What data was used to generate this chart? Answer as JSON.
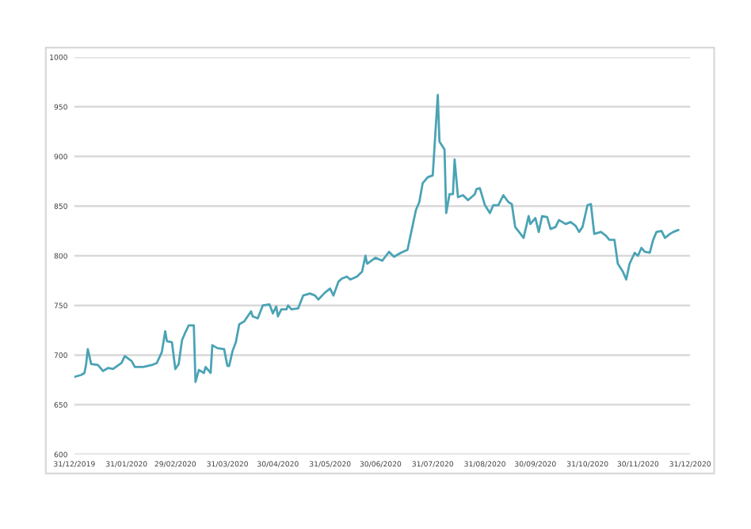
{
  "chart_data": {
    "type": "line",
    "x": [
      "2019-12-31",
      "2020-01-04",
      "2020-01-06",
      "2020-01-07",
      "2020-01-08",
      "2020-01-10",
      "2020-01-14",
      "2020-01-17",
      "2020-01-20",
      "2020-01-23",
      "2020-01-28",
      "2020-01-30",
      "2020-02-03",
      "2020-02-05",
      "2020-02-10",
      "2020-02-15",
      "2020-02-18",
      "2020-02-21",
      "2020-02-23",
      "2020-02-24",
      "2020-02-27",
      "2020-02-29",
      "2020-03-02",
      "2020-03-04",
      "2020-03-06",
      "2020-03-08",
      "2020-03-11",
      "2020-03-12",
      "2020-03-14",
      "2020-03-17",
      "2020-03-18",
      "2020-03-21",
      "2020-03-22",
      "2020-03-25",
      "2020-03-29",
      "2020-03-31",
      "2020-04-01",
      "2020-04-03",
      "2020-04-05",
      "2020-04-07",
      "2020-04-10",
      "2020-04-14",
      "2020-04-15",
      "2020-04-18",
      "2020-04-21",
      "2020-04-25",
      "2020-04-27",
      "2020-04-29",
      "2020-04-30",
      "2020-05-02",
      "2020-05-05",
      "2020-05-06",
      "2020-05-08",
      "2020-05-12",
      "2020-05-15",
      "2020-05-19",
      "2020-05-22",
      "2020-05-24",
      "2020-05-28",
      "2020-05-31",
      "2020-06-02",
      "2020-06-05",
      "2020-06-07",
      "2020-06-10",
      "2020-06-12",
      "2020-06-16",
      "2020-06-19",
      "2020-06-21",
      "2020-06-22",
      "2020-06-27",
      "2020-07-01",
      "2020-07-05",
      "2020-07-08",
      "2020-07-12",
      "2020-07-16",
      "2020-07-18",
      "2020-07-21",
      "2020-07-23",
      "2020-07-25",
      "2020-07-28",
      "2020-07-31",
      "2020-08-03",
      "2020-08-04",
      "2020-08-07",
      "2020-08-08",
      "2020-08-10",
      "2020-08-12",
      "2020-08-13",
      "2020-08-15",
      "2020-08-18",
      "2020-08-21",
      "2020-08-25",
      "2020-08-26",
      "2020-08-28",
      "2020-08-31",
      "2020-09-03",
      "2020-09-05",
      "2020-09-08",
      "2020-09-11",
      "2020-09-14",
      "2020-09-16",
      "2020-09-18",
      "2020-09-23",
      "2020-09-26",
      "2020-09-27",
      "2020-09-30",
      "2020-10-02",
      "2020-10-04",
      "2020-10-07",
      "2020-10-09",
      "2020-10-12",
      "2020-10-14",
      "2020-10-18",
      "2020-10-21",
      "2020-10-24",
      "2020-10-26",
      "2020-10-28",
      "2020-10-31",
      "2020-11-02",
      "2020-11-04",
      "2020-11-08",
      "2020-11-11",
      "2020-11-13",
      "2020-11-16",
      "2020-11-18",
      "2020-11-21",
      "2020-11-23",
      "2020-11-25",
      "2020-11-28",
      "2020-11-30",
      "2020-12-02",
      "2020-12-04",
      "2020-12-07",
      "2020-12-09",
      "2020-12-11",
      "2020-12-14",
      "2020-12-16",
      "2020-12-19",
      "2020-12-21",
      "2020-12-24"
    ],
    "series": [
      {
        "color": "#4aa3b5",
        "values": [
          678,
          680,
          682,
          691,
          706,
          691,
          690,
          684,
          687,
          686,
          692,
          699,
          694,
          688,
          688,
          690,
          692,
          703,
          724,
          714,
          713,
          686,
          691,
          715,
          723,
          730,
          730,
          673,
          685,
          682,
          688,
          682,
          710,
          707,
          706,
          689,
          689,
          704,
          713,
          731,
          734,
          744,
          739,
          737,
          750,
          751,
          742,
          749,
          739,
          746,
          746,
          750,
          746,
          747,
          760,
          762,
          760,
          756,
          763,
          767,
          760,
          774,
          777,
          779,
          776,
          779,
          784,
          800,
          792,
          798,
          795,
          804,
          799,
          803,
          806,
          822,
          846,
          854,
          873,
          879,
          881,
          962,
          915,
          907,
          843,
          862,
          862,
          897,
          859,
          861,
          856,
          862,
          867,
          868,
          851,
          843,
          851,
          851,
          861,
          854,
          852,
          829,
          818,
          840,
          832,
          838,
          824,
          840,
          839,
          827,
          829,
          836,
          832,
          834,
          830,
          824,
          829,
          851,
          852,
          822,
          824,
          820,
          816,
          816,
          792,
          784,
          776,
          792,
          803,
          800,
          808,
          804,
          803,
          816,
          824,
          825,
          818,
          822,
          824,
          826
        ]
      }
    ],
    "xlim": [
      "2019-12-31",
      "2020-12-31"
    ],
    "xticks": [
      {
        "value": "2019-12-31",
        "label": "31/12/2019"
      },
      {
        "value": "2020-01-31",
        "label": "31/01/2020"
      },
      {
        "value": "2020-02-29",
        "label": "29/02/2020"
      },
      {
        "value": "2020-03-31",
        "label": "31/03/2020"
      },
      {
        "value": "2020-04-30",
        "label": "30/04/2020"
      },
      {
        "value": "2020-05-31",
        "label": "31/05/2020"
      },
      {
        "value": "2020-06-30",
        "label": "30/06/2020"
      },
      {
        "value": "2020-07-31",
        "label": "31/07/2020"
      },
      {
        "value": "2020-08-31",
        "label": "31/08/2020"
      },
      {
        "value": "2020-09-30",
        "label": "30/09/2020"
      },
      {
        "value": "2020-10-31",
        "label": "31/10/2020"
      },
      {
        "value": "2020-11-30",
        "label": "30/11/2020"
      },
      {
        "value": "2020-12-31",
        "label": "31/12/2020"
      }
    ],
    "ylim": [
      600,
      1000
    ],
    "yticks": [
      600,
      650,
      700,
      750,
      800,
      850,
      900,
      950,
      1000
    ],
    "grid": "y",
    "marker": "none",
    "line_style": "solid"
  }
}
